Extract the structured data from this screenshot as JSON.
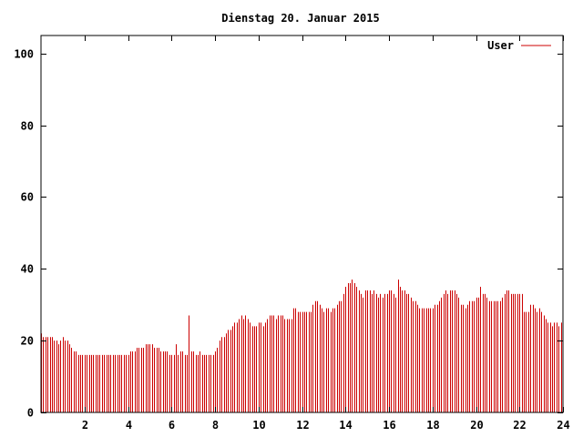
{
  "chart_data": {
    "type": "bar",
    "title": "Dienstag 20. Januar 2015",
    "xlabel": "",
    "ylabel": "",
    "xlim": [
      0,
      24
    ],
    "ylim": [
      0,
      105
    ],
    "x_ticks": [
      2,
      4,
      6,
      8,
      10,
      12,
      14,
      16,
      18,
      20,
      22,
      24
    ],
    "y_ticks": [
      0,
      20,
      40,
      60,
      80,
      100
    ],
    "grid": false,
    "legend_position": "top-right",
    "series": [
      {
        "name": "User",
        "color": "#cc0000",
        "sample_interval_hours": 0.1,
        "values": [
          22,
          21,
          21,
          21,
          21,
          21,
          20,
          20,
          19,
          20,
          21,
          20,
          20,
          19,
          18,
          17,
          17,
          16,
          16,
          16,
          16,
          16,
          16,
          16,
          16,
          16,
          16,
          16,
          16,
          16,
          16,
          16,
          16,
          16,
          16,
          16,
          16,
          16,
          16,
          16,
          16,
          17,
          17,
          17,
          18,
          18,
          18,
          18,
          19,
          19,
          19,
          19,
          18,
          18,
          18,
          17,
          17,
          17,
          17,
          16,
          16,
          16,
          19,
          16,
          17,
          17,
          16,
          16,
          27,
          17,
          17,
          16,
          16,
          17,
          16,
          16,
          16,
          16,
          16,
          16,
          17,
          18,
          20,
          21,
          21,
          22,
          23,
          23,
          24,
          25,
          25,
          26,
          27,
          26,
          27,
          26,
          25,
          24,
          24,
          24,
          25,
          25,
          24,
          25,
          26,
          27,
          27,
          27,
          26,
          27,
          27,
          27,
          26,
          26,
          26,
          26,
          29,
          29,
          28,
          28,
          28,
          28,
          28,
          28,
          28,
          30,
          31,
          31,
          30,
          29,
          28,
          29,
          29,
          28,
          29,
          29,
          30,
          31,
          31,
          33,
          35,
          36,
          36,
          37,
          36,
          35,
          34,
          33,
          32,
          34,
          34,
          34,
          33,
          34,
          33,
          32,
          33,
          32,
          33,
          33,
          34,
          34,
          33,
          32,
          37,
          35,
          34,
          34,
          33,
          33,
          32,
          31,
          31,
          30,
          29,
          29,
          29,
          29,
          29,
          29,
          29,
          30,
          30,
          31,
          32,
          33,
          34,
          33,
          34,
          34,
          34,
          33,
          32,
          30,
          30,
          29,
          30,
          31,
          31,
          31,
          32,
          32,
          35,
          33,
          33,
          32,
          31,
          31,
          31,
          31,
          31,
          31,
          32,
          33,
          34,
          34,
          33,
          33,
          33,
          33,
          33,
          33,
          28,
          28,
          28,
          30,
          30,
          29,
          28,
          29,
          28,
          27,
          26,
          25,
          25,
          24,
          25,
          25,
          24,
          25
        ]
      }
    ]
  }
}
